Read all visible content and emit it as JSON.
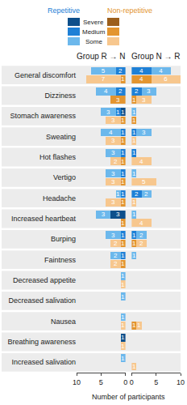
{
  "chart_data": {
    "type": "bar",
    "orientation": "horizontal",
    "stacked": true,
    "data_labels": true,
    "grid": false,
    "xlabel": "Number of participants",
    "categories": [
      "General discomfort",
      "Dizziness",
      "Stomach awareness",
      "Sweating",
      "Hot flashes",
      "Vertigo",
      "Headache",
      "Increased heartbeat",
      "Burping",
      "Faintness",
      "Decreased appetite",
      "Decreased salivation",
      "Nausea",
      "Breathing awareness",
      "Increased salivation"
    ],
    "panels": [
      {
        "title": "Group R → N",
        "xlim": [
          10,
          0
        ],
        "xticks": [
          10,
          5,
          0
        ],
        "groups": [
          {
            "name": "Repetitive",
            "series": [
              {
                "name": "Severe",
                "color": "#0d4f8b",
                "values": [
                  0,
                  0,
                  1,
                  0,
                  0,
                  0,
                  0,
                  3,
                  0,
                  0,
                  0,
                  0,
                  0,
                  1,
                  0
                ]
              },
              {
                "name": "Medium",
                "color": "#1e80d6",
                "values": [
                  2,
                  2,
                  1,
                  1,
                  1,
                  1,
                  1,
                  0,
                  1,
                  1,
                  0,
                  0,
                  0,
                  0,
                  0
                ]
              },
              {
                "name": "Some",
                "color": "#6cb8ec",
                "values": [
                  5,
                  4,
                  3,
                  4,
                  3,
                  3,
                  1,
                  3,
                  3,
                  2,
                  1,
                  1,
                  1,
                  0,
                  1
                ]
              }
            ]
          },
          {
            "name": "Non-repetitive",
            "series": [
              {
                "name": "Severe",
                "color": "#9c5f1c",
                "values": [
                  0,
                  0,
                  0,
                  0,
                  0,
                  0,
                  0,
                  0,
                  0,
                  0,
                  0,
                  0,
                  0,
                  0,
                  0
                ]
              },
              {
                "name": "Medium",
                "color": "#e39530",
                "values": [
                  1,
                  3,
                  1,
                  1,
                  1,
                  1,
                  1,
                  1,
                  1,
                  1,
                  0,
                  0,
                  0,
                  0,
                  0
                ]
              },
              {
                "name": "Some",
                "color": "#f7c78e",
                "values": [
                  7,
                  0,
                  3,
                  3,
                  2,
                  3,
                  3,
                  0,
                  2,
                  2,
                  1,
                  0,
                  1,
                  1,
                  0
                ]
              }
            ]
          }
        ]
      },
      {
        "title": "Group N → R",
        "xlim": [
          0,
          10
        ],
        "xticks": [
          0,
          5,
          10
        ],
        "groups": [
          {
            "name": "Repetitive",
            "series": [
              {
                "name": "Severe",
                "color": "#0d4f8b",
                "values": [
                  0,
                  0,
                  0,
                  0,
                  0,
                  0,
                  0,
                  0,
                  0,
                  0,
                  0,
                  0,
                  0,
                  0,
                  0
                ]
              },
              {
                "name": "Medium",
                "color": "#1e80d6",
                "values": [
                  4,
                  2,
                  0,
                  1,
                  1,
                  0,
                  2,
                  0,
                  1,
                  0,
                  0,
                  0,
                  0,
                  0,
                  0
                ]
              },
              {
                "name": "Some",
                "color": "#6cb8ec",
                "values": [
                  4,
                  3,
                  1,
                  3,
                  0,
                  1,
                  2,
                  1,
                  2,
                  1,
                  0,
                  0,
                  0,
                  0,
                  0
                ]
              }
            ]
          },
          {
            "name": "Non-repetitive",
            "series": [
              {
                "name": "Severe",
                "color": "#9c5f1c",
                "values": [
                  0,
                  0,
                  0,
                  0,
                  0,
                  0,
                  0,
                  0,
                  0,
                  0,
                  0,
                  0,
                  0,
                  0,
                  0
                ]
              },
              {
                "name": "Medium",
                "color": "#e39530",
                "values": [
                  4,
                  1,
                  1,
                  0,
                  0,
                  0,
                  0,
                  0,
                  1,
                  0,
                  0,
                  0,
                  1,
                  0,
                  0
                ]
              },
              {
                "name": "Some",
                "color": "#f7c78e",
                "values": [
                  6,
                  3,
                  0,
                  1,
                  4,
                  5,
                  1,
                  4,
                  2,
                  0,
                  0,
                  0,
                  1,
                  0,
                  1
                ]
              }
            ]
          }
        ]
      }
    ]
  }
}
